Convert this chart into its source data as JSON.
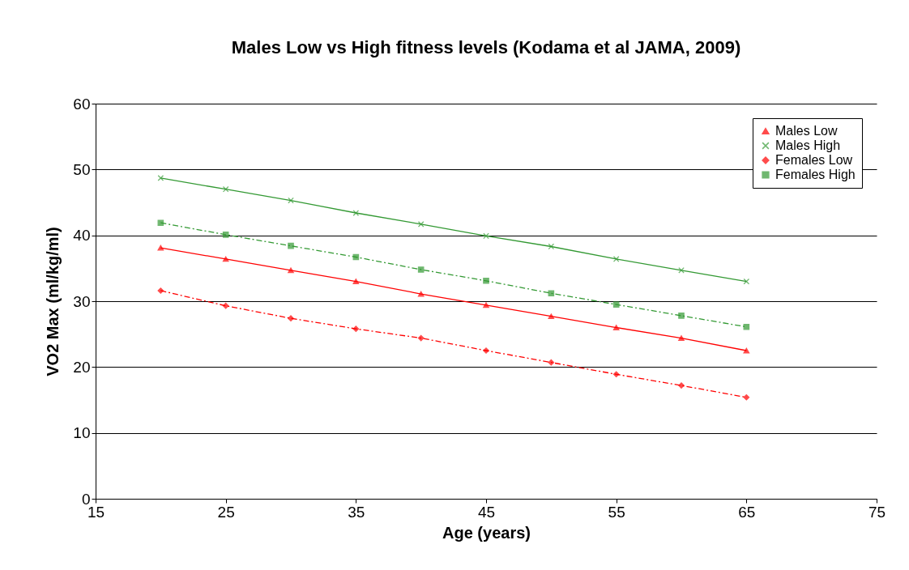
{
  "chart_data": {
    "type": "line",
    "title": "Males Low vs High fitness levels (Kodama et al JAMA, 2009)",
    "xlabel": "Age (years)",
    "ylabel": "VO2 Max (ml/kg/ml)",
    "x": [
      20,
      25,
      30,
      35,
      40,
      45,
      50,
      55,
      60,
      65
    ],
    "series": [
      {
        "name": "Males Low",
        "color": "#ff0000",
        "marker": "triangle",
        "line_style": "solid",
        "values": [
          38.1,
          36.4,
          34.7,
          33.0,
          31.1,
          29.4,
          27.7,
          26.0,
          24.4,
          22.5
        ]
      },
      {
        "name": "Males High",
        "color": "#339933",
        "marker": "cross",
        "line_style": "solid",
        "values": [
          48.7,
          47.0,
          45.3,
          43.4,
          41.7,
          39.9,
          38.3,
          36.4,
          34.7,
          33.0
        ]
      },
      {
        "name": "Females Low",
        "color": "#ff0000",
        "marker": "diamond",
        "line_style": "dashed",
        "values": [
          31.6,
          29.3,
          27.4,
          25.8,
          24.4,
          22.5,
          20.7,
          18.9,
          17.2,
          15.4
        ]
      },
      {
        "name": "Females High",
        "color": "#339933",
        "marker": "square",
        "line_style": "dashed",
        "values": [
          41.9,
          40.1,
          38.4,
          36.7,
          34.8,
          33.1,
          31.2,
          29.5,
          27.8,
          26.1
        ]
      }
    ],
    "xlim": [
      15,
      75
    ],
    "xticks": [
      15,
      25,
      35,
      45,
      55,
      65,
      75
    ],
    "ylim": [
      0,
      60
    ],
    "yticks": [
      0,
      10,
      20,
      30,
      40,
      50,
      60
    ],
    "grid": "y",
    "legend": "top right"
  }
}
